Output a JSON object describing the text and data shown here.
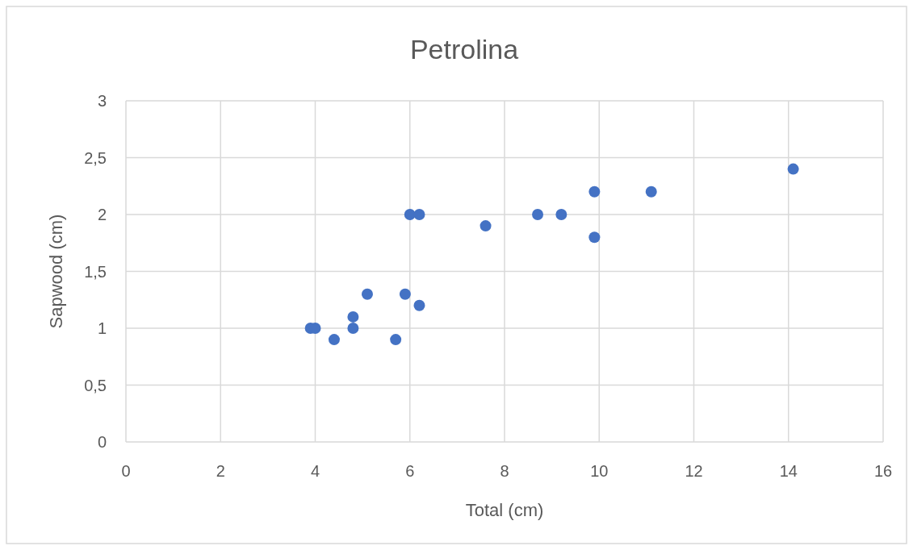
{
  "chart_data": {
    "type": "scatter",
    "title": "Petrolina",
    "xlabel": "Total (cm)",
    "ylabel": "Sapwood (cm)",
    "x": [
      3.9,
      4.0,
      4.4,
      4.8,
      4.8,
      5.1,
      5.7,
      5.9,
      6.2,
      6.0,
      6.2,
      7.6,
      8.7,
      9.2,
      9.9,
      9.9,
      11.1,
      14.1
    ],
    "series": [
      {
        "color": "#4472c4",
        "values": [
          1.0,
          1.0,
          0.9,
          1.1,
          1.0,
          1.3,
          0.9,
          1.3,
          1.2,
          2.0,
          2.0,
          1.9,
          2.0,
          2.0,
          2.2,
          1.8,
          2.2,
          2.4
        ]
      }
    ],
    "xlim": [
      0,
      16
    ],
    "xticks": [
      0,
      2,
      4,
      6,
      8,
      10,
      12,
      14,
      16
    ],
    "ylim": [
      0,
      3
    ],
    "yticks": [
      0,
      {
        "value": 0.5,
        "label": "0,5"
      },
      1,
      {
        "value": 1.5,
        "label": "1,5"
      },
      2,
      {
        "value": 2.5,
        "label": "2,5"
      },
      3
    ],
    "grid": true,
    "marker": "circle"
  }
}
